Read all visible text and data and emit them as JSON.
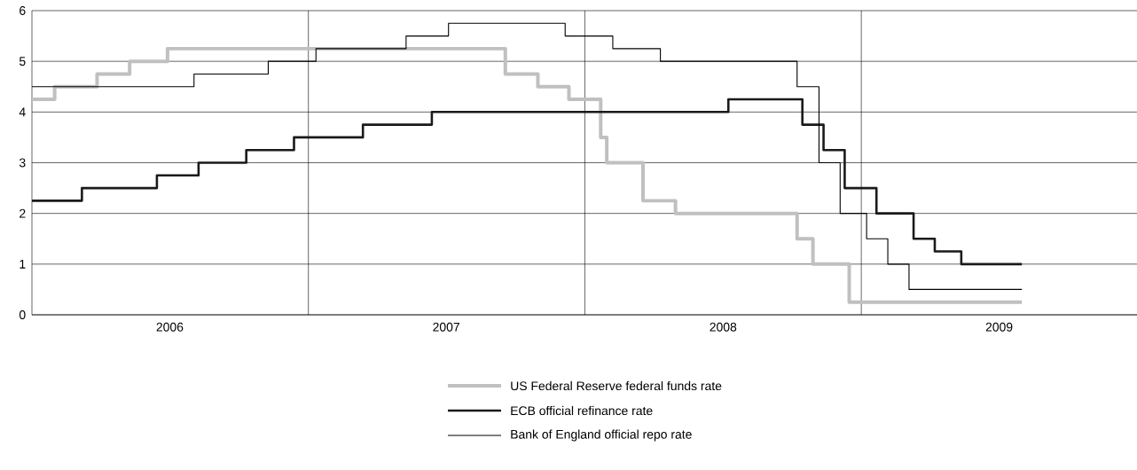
{
  "chart_data": {
    "type": "step",
    "xlim": [
      "2006-01-01",
      "2009-12-31"
    ],
    "xticks": [
      {
        "value": "2006-07-02",
        "label": "2006"
      },
      {
        "value": "2007-01-01",
        "label": null
      },
      {
        "value": "2007-07-02",
        "label": "2007"
      },
      {
        "value": "2008-01-01",
        "label": null
      },
      {
        "value": "2008-07-02",
        "label": "2008"
      },
      {
        "value": "2009-01-01",
        "label": null
      },
      {
        "value": "2009-07-02",
        "label": "2009"
      }
    ],
    "ylim": [
      0,
      6
    ],
    "yticks": [
      0,
      1,
      2,
      3,
      4,
      5,
      6
    ],
    "grid": true,
    "legend": "bottom",
    "series": [
      {
        "name": "US Federal Reserve federal funds rate",
        "color": "#c0c0c0",
        "x": [
          "2006-01-01",
          "2006-01-31",
          "2006-03-28",
          "2006-05-10",
          "2006-06-29",
          "2007-09-18",
          "2007-10-31",
          "2007-12-11",
          "2008-01-22",
          "2008-01-30",
          "2008-03-18",
          "2008-04-30",
          "2008-10-08",
          "2008-10-29",
          "2008-12-16",
          "2009-08-01"
        ],
        "values": [
          4.25,
          4.5,
          4.75,
          5.0,
          5.25,
          4.75,
          4.5,
          4.25,
          3.5,
          3.0,
          2.25,
          2.0,
          1.5,
          1.0,
          0.25,
          0.25
        ]
      },
      {
        "name": "ECB official refinance rate",
        "color": "#1a1a1a",
        "x": [
          "2006-01-01",
          "2006-03-08",
          "2006-06-15",
          "2006-08-09",
          "2006-10-11",
          "2006-12-13",
          "2007-03-14",
          "2007-06-13",
          "2008-07-09",
          "2008-10-15",
          "2008-11-12",
          "2008-12-10",
          "2009-01-21",
          "2009-03-11",
          "2009-04-08",
          "2009-05-13",
          "2009-08-01"
        ],
        "values": [
          2.25,
          2.5,
          2.75,
          3.0,
          3.25,
          3.5,
          3.75,
          4.0,
          4.25,
          3.75,
          3.25,
          2.5,
          2.0,
          1.5,
          1.25,
          1.0,
          1.0
        ]
      },
      {
        "name": "Bank of England official repo rate",
        "color": "#000000",
        "x": [
          "2006-01-01",
          "2006-08-03",
          "2006-11-09",
          "2007-01-11",
          "2007-05-10",
          "2007-07-05",
          "2007-12-06",
          "2008-02-07",
          "2008-04-10",
          "2008-10-08",
          "2008-11-06",
          "2008-12-04",
          "2009-01-08",
          "2009-02-05",
          "2009-03-05",
          "2009-08-01"
        ],
        "values": [
          4.5,
          4.75,
          5.0,
          5.25,
          5.5,
          5.75,
          5.5,
          5.25,
          5.0,
          4.5,
          3.0,
          2.0,
          1.5,
          1.0,
          0.5,
          0.5
        ]
      }
    ]
  }
}
